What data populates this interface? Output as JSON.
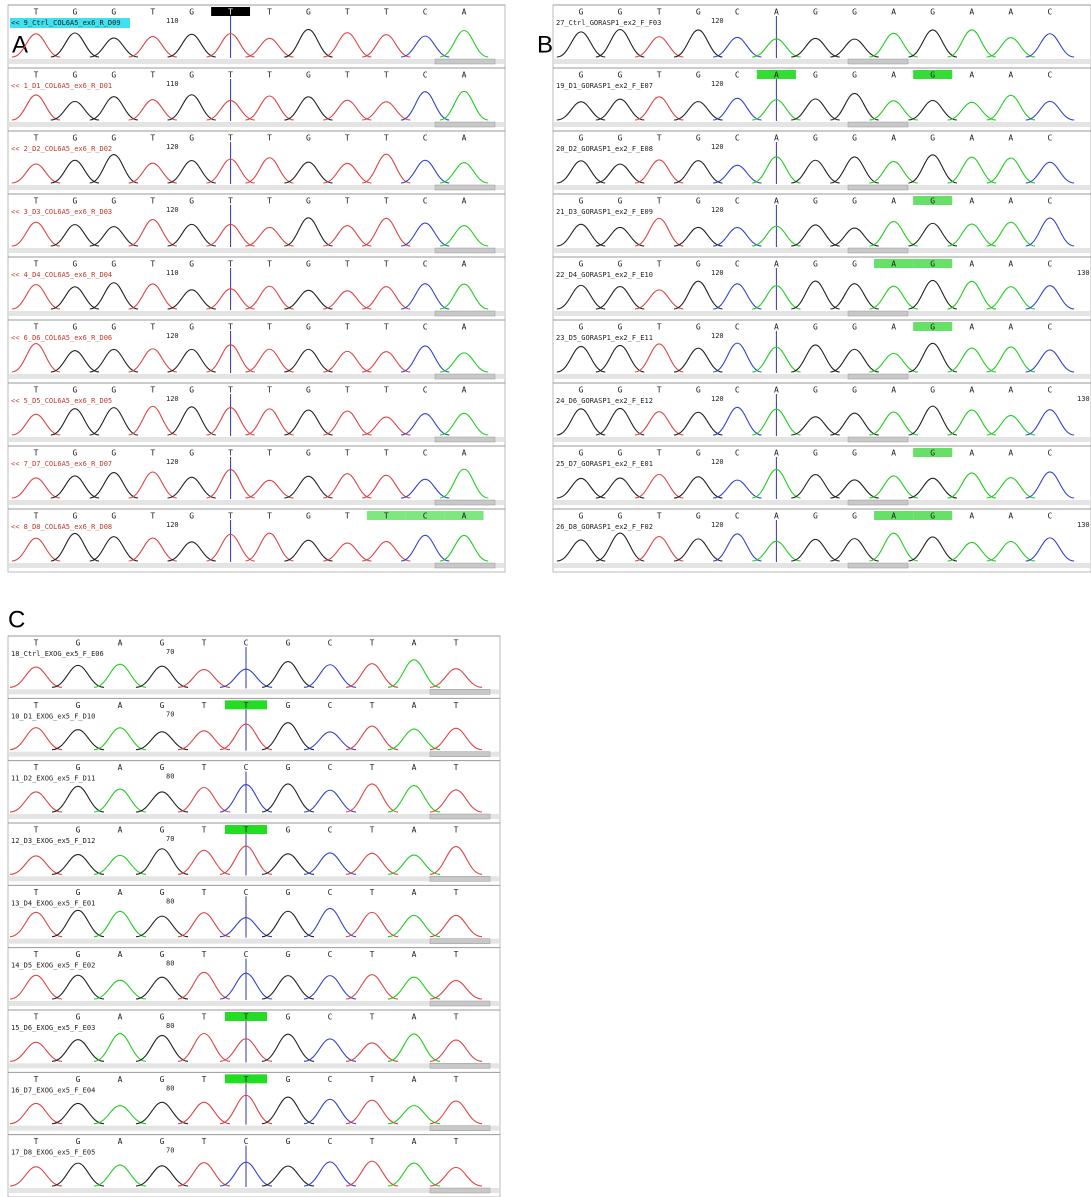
{
  "panels": [
    {
      "label": "A",
      "name_color": "#c0392b",
      "tracks": [
        {
          "name": "<< 9_Ctrl_COL6A5_ex6_R_D09",
          "name_highlight": "#40e0f0",
          "bases": [
            "T",
            "G",
            "G",
            "T",
            "G",
            "T",
            "T",
            "G",
            "T",
            "T",
            "C",
            "A"
          ],
          "positions": [
            "110"
          ],
          "highlighted": [
            5
          ],
          "highlight_color": "#000000"
        },
        {
          "name": "<< 1_D1_COL6A5_ex6_R_D01",
          "bases": [
            "T",
            "G",
            "G",
            "T",
            "G",
            "T",
            "T",
            "G",
            "T",
            "T",
            "C",
            "A"
          ],
          "positions": [
            "110"
          ]
        },
        {
          "name": "<< 2_D2_COL6A5_ex6_R_D02",
          "bases": [
            "T",
            "G",
            "G",
            "T",
            "G",
            "T",
            "T",
            "G",
            "T",
            "T",
            "C",
            "A"
          ],
          "positions": [
            "120"
          ]
        },
        {
          "name": "<< 3_D3_COL6A5_ex6_R_D03",
          "bases": [
            "T",
            "G",
            "G",
            "T",
            "G",
            "T",
            "T",
            "G",
            "T",
            "T",
            "C",
            "A"
          ],
          "positions": [
            "120"
          ]
        },
        {
          "name": "<< 4_D4_COL6A5_ex6_R_D04",
          "bases": [
            "T",
            "G",
            "G",
            "T",
            "G",
            "T",
            "T",
            "G",
            "T",
            "T",
            "C",
            "A"
          ],
          "positions": [
            "110"
          ]
        },
        {
          "name": "<< 6_D6_COL6A5_ex6_R_D06",
          "bases": [
            "T",
            "G",
            "G",
            "T",
            "G",
            "T",
            "T",
            "G",
            "T",
            "T",
            "C",
            "A"
          ],
          "positions": [
            "120"
          ]
        },
        {
          "name": "<< 5_D5_COL6A5_ex6_R_D05",
          "bases": [
            "T",
            "G",
            "G",
            "T",
            "G",
            "T",
            "T",
            "G",
            "T",
            "T",
            "C",
            "A"
          ],
          "positions": [
            "120"
          ]
        },
        {
          "name": "<< 7_D7_COL6A5_ex6_R_D07",
          "bases": [
            "T",
            "G",
            "G",
            "T",
            "G",
            "T",
            "T",
            "G",
            "T",
            "T",
            "C",
            "A"
          ],
          "positions": [
            "120"
          ]
        },
        {
          "name": "<< 8_D8_COL6A5_ex6_R_D08",
          "bases": [
            "T",
            "G",
            "G",
            "T",
            "G",
            "T",
            "T",
            "G",
            "T",
            "T",
            "C",
            "A"
          ],
          "positions": [
            "120"
          ],
          "highlighted": [
            9,
            10,
            11
          ],
          "highlight_color": "#7ee87e"
        }
      ]
    },
    {
      "label": "B",
      "name_color": "#222222",
      "tracks": [
        {
          "name": "27_Ctrl_GORASP1_ex2_F_F03",
          "bases": [
            "G",
            "G",
            "T",
            "G",
            "C",
            "A",
            "G",
            "G",
            "A",
            "G",
            "A",
            "A",
            "C"
          ],
          "positions": [
            "120"
          ]
        },
        {
          "name": "19_D1_GORASP1_ex2_F_E07",
          "bases": [
            "G",
            "G",
            "T",
            "G",
            "C",
            "A",
            "G",
            "G",
            "A",
            "G",
            "A",
            "A",
            "C"
          ],
          "positions": [
            "120"
          ],
          "highlighted": [
            5,
            9
          ],
          "highlight_color": "#33dd33"
        },
        {
          "name": "20_D2_GORASP1_ex2_F_E08",
          "bases": [
            "G",
            "G",
            "T",
            "G",
            "C",
            "A",
            "G",
            "G",
            "A",
            "G",
            "A",
            "A",
            "C"
          ],
          "positions": [
            "120"
          ]
        },
        {
          "name": "21_D3_GORASP1_ex2_F_E09",
          "bases": [
            "G",
            "G",
            "T",
            "G",
            "C",
            "A",
            "G",
            "G",
            "A",
            "G",
            "A",
            "A",
            "C"
          ],
          "positions": [
            "120"
          ],
          "highlighted": [
            9
          ],
          "highlight_color": "#66e066"
        },
        {
          "name": "22_D4_GORASP1_ex2_F_E10",
          "bases": [
            "G",
            "G",
            "T",
            "G",
            "C",
            "A",
            "G",
            "G",
            "A",
            "G",
            "A",
            "A",
            "C"
          ],
          "positions": [
            "120",
            "130"
          ],
          "highlighted": [
            8,
            9
          ],
          "highlight_color": "#66e066"
        },
        {
          "name": "23_D5_GORASP1_ex2_F_E11",
          "bases": [
            "G",
            "G",
            "T",
            "G",
            "C",
            "A",
            "G",
            "G",
            "A",
            "G",
            "A",
            "A",
            "C"
          ],
          "positions": [
            "120"
          ],
          "highlighted": [
            9
          ],
          "highlight_color": "#66e066"
        },
        {
          "name": "24_D6_GORASP1_ex2_F_E12",
          "bases": [
            "G",
            "G",
            "T",
            "G",
            "C",
            "A",
            "G",
            "G",
            "A",
            "G",
            "A",
            "A",
            "C"
          ],
          "positions": [
            "120",
            "130"
          ]
        },
        {
          "name": "25_D7_GORASP1_ex2_F_E01",
          "bases": [
            "G",
            "G",
            "T",
            "G",
            "C",
            "A",
            "G",
            "G",
            "A",
            "G",
            "A",
            "A",
            "C"
          ],
          "positions": [
            "120"
          ],
          "highlighted": [
            9
          ],
          "highlight_color": "#66e066"
        },
        {
          "name": "26_D8_GORASP1_ex2_F_F02",
          "bases": [
            "G",
            "G",
            "T",
            "G",
            "C",
            "A",
            "G",
            "G",
            "A",
            "G",
            "A",
            "A",
            "C"
          ],
          "positions": [
            "120",
            "130"
          ],
          "highlighted": [
            8,
            9
          ],
          "highlight_color": "#66e066"
        }
      ]
    },
    {
      "label": "C",
      "name_color": "#222222",
      "tracks": [
        {
          "name": "18_Ctrl_EXOG_ex5_F_E06",
          "bases": [
            "T",
            "G",
            "A",
            "G",
            "T",
            "C",
            "G",
            "C",
            "T",
            "A",
            "T"
          ],
          "positions": [
            "70"
          ]
        },
        {
          "name": "10_D1_EXOG_ex5_F_D10",
          "bases": [
            "T",
            "G",
            "A",
            "G",
            "T",
            "T",
            "G",
            "C",
            "T",
            "A",
            "T"
          ],
          "positions": [
            "70"
          ],
          "highlighted": [
            5
          ],
          "highlight_color": "#22dd22"
        },
        {
          "name": "11_D2_EXOG_ex5_F_D11",
          "bases": [
            "T",
            "G",
            "A",
            "G",
            "T",
            "C",
            "G",
            "C",
            "T",
            "A",
            "T"
          ],
          "positions": [
            "80"
          ]
        },
        {
          "name": "12_D3_EXOG_ex5_F_D12",
          "bases": [
            "T",
            "G",
            "A",
            "G",
            "T",
            "T",
            "G",
            "C",
            "T",
            "A",
            "T"
          ],
          "positions": [
            "70"
          ],
          "highlighted": [
            5
          ],
          "highlight_color": "#22dd22"
        },
        {
          "name": "13_D4_EXOG_ex5_F_E01",
          "bases": [
            "T",
            "G",
            "A",
            "G",
            "T",
            "C",
            "G",
            "C",
            "T",
            "A",
            "T"
          ],
          "positions": [
            "80"
          ]
        },
        {
          "name": "14_D5_EXOG_ex5_F_E02",
          "bases": [
            "T",
            "G",
            "A",
            "G",
            "T",
            "C",
            "G",
            "C",
            "T",
            "A",
            "T"
          ],
          "positions": [
            "80"
          ]
        },
        {
          "name": "15_D6_EXOG_ex5_F_E03",
          "bases": [
            "T",
            "G",
            "A",
            "G",
            "T",
            "T",
            "G",
            "C",
            "T",
            "A",
            "T"
          ],
          "positions": [
            "80"
          ],
          "highlighted": [
            5
          ],
          "highlight_color": "#22dd22"
        },
        {
          "name": "16_D7_EXOG_ex5_F_E04",
          "bases": [
            "T",
            "G",
            "A",
            "G",
            "T",
            "T",
            "G",
            "C",
            "T",
            "A",
            "T"
          ],
          "positions": [
            "80"
          ],
          "highlighted": [
            5
          ],
          "highlight_color": "#22dd22"
        },
        {
          "name": "17_D8_EXOG_ex5_F_E05",
          "bases": [
            "T",
            "G",
            "A",
            "G",
            "T",
            "C",
            "G",
            "C",
            "T",
            "A",
            "T"
          ],
          "positions": [
            "70"
          ]
        }
      ]
    }
  ]
}
